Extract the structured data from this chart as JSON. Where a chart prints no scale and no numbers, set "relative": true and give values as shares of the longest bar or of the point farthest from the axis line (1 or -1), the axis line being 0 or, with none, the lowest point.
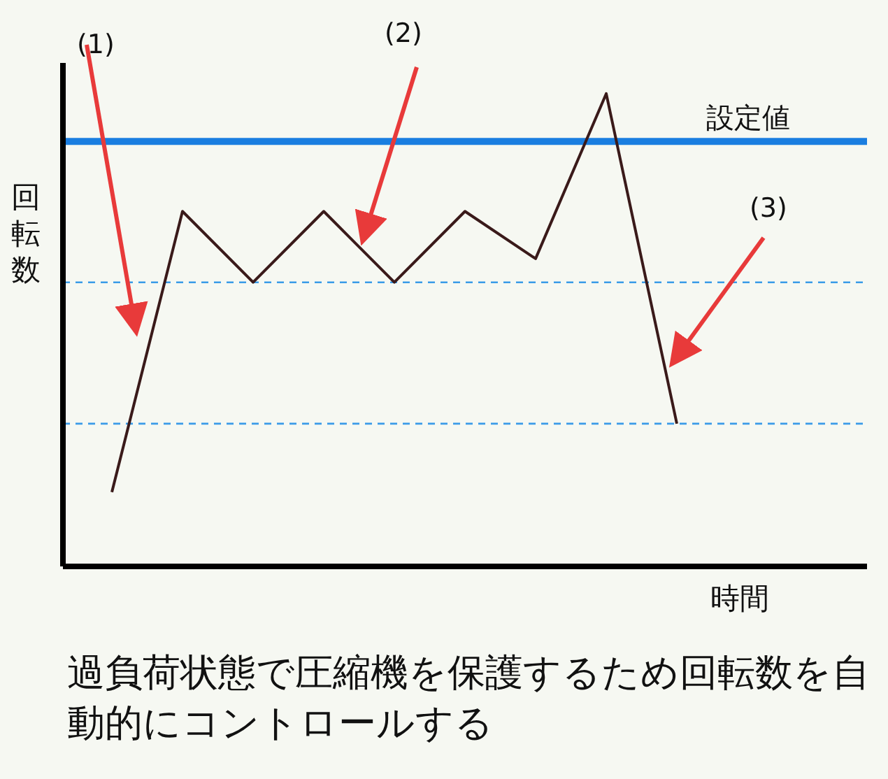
{
  "chart_data": {
    "type": "line",
    "relative": true,
    "xlabel": "時間",
    "ylabel": "回転数",
    "categories": [
      null,
      null,
      null,
      null,
      null,
      null,
      null,
      null,
      null
    ],
    "series": [
      {
        "color": "#3a1a1a",
        "values": [
          0.157,
          0.751,
          0.601,
          0.751,
          0.601,
          0.751,
          0.651,
          1,
          0.302
        ]
      }
    ],
    "ref_lines": [
      {
        "axis": "y",
        "value": 0.899,
        "label": "設定値",
        "color": "#1a7ee0",
        "line_style": "solid"
      },
      {
        "axis": "y",
        "value": 0.601,
        "label": null,
        "color": "#3a9be8",
        "line_style": "dashed"
      },
      {
        "axis": "y",
        "value": 0.302,
        "label": null,
        "color": "#3a9be8",
        "line_style": "dashed"
      }
    ],
    "annotations": [
      "(1)",
      "(2)",
      "(3)",
      "過負荷状態で圧縮機を保護するため回転数を自動的にコントロールする"
    ],
    "marker": "none",
    "line_style": "solid"
  }
}
